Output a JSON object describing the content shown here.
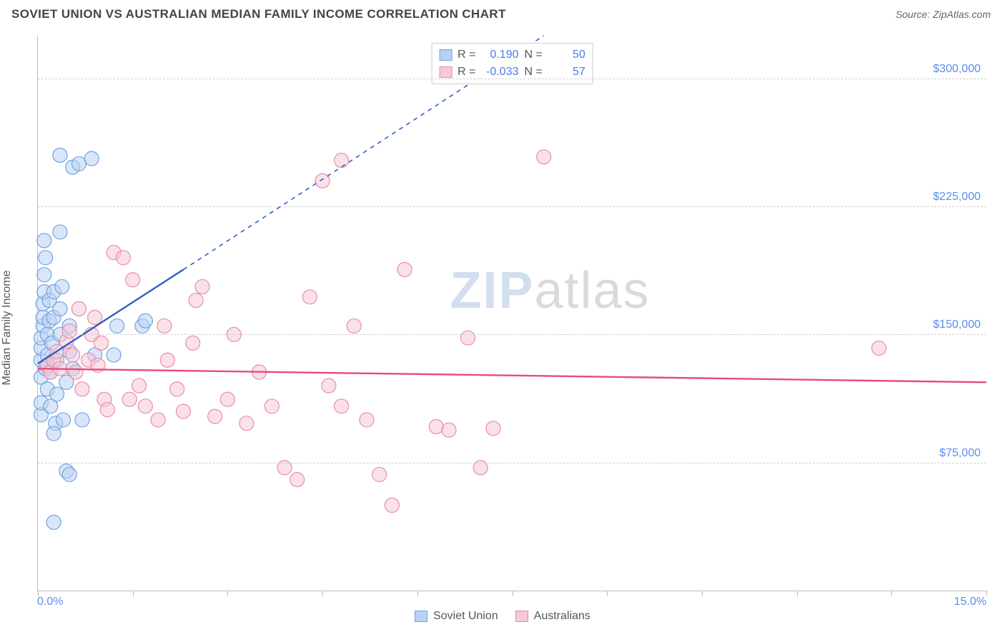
{
  "header": {
    "title": "SOVIET UNION VS AUSTRALIAN MEDIAN FAMILY INCOME CORRELATION CHART",
    "source": "Source: ZipAtlas.com"
  },
  "chart": {
    "type": "scatter",
    "ylabel": "Median Family Income",
    "xlim": [
      0,
      15
    ],
    "ylim": [
      0,
      325000
    ],
    "xtick_positions": [
      0,
      1.5,
      3.0,
      4.5,
      6.0,
      7.5,
      9.0,
      10.5,
      12.0,
      13.5,
      15.0
    ],
    "xaxis_min_label": "0.0%",
    "xaxis_max_label": "15.0%",
    "yticks": [
      {
        "v": 75000,
        "label": "$75,000"
      },
      {
        "v": 150000,
        "label": "$150,000"
      },
      {
        "v": 225000,
        "label": "$225,000"
      },
      {
        "v": 300000,
        "label": "$300,000"
      }
    ],
    "background_color": "#ffffff",
    "grid_color": "#d0d0d0",
    "axis_color": "#bbbbbb",
    "tick_label_color": "#5b8def",
    "marker_radius": 10,
    "marker_opacity": 0.55,
    "series": [
      {
        "name": "Soviet Union",
        "color_fill": "#b9d2f4",
        "color_stroke": "#6fa3e0",
        "swatch_fill": "#b9d2f4",
        "swatch_border": "#6fa3e0",
        "R": "0.190",
        "N": "50",
        "trend": {
          "color": "#2f5fc4",
          "solid": {
            "x1": 0.0,
            "y1": 133000,
            "x2": 2.3,
            "y2": 188000
          },
          "dashed": {
            "x1": 2.3,
            "y1": 188000,
            "x2": 8.0,
            "y2": 325000
          }
        },
        "points": [
          [
            0.05,
            103000
          ],
          [
            0.05,
            110000
          ],
          [
            0.05,
            125000
          ],
          [
            0.05,
            135000
          ],
          [
            0.05,
            142000
          ],
          [
            0.05,
            148000
          ],
          [
            0.08,
            155000
          ],
          [
            0.08,
            160000
          ],
          [
            0.08,
            168000
          ],
          [
            0.1,
            175000
          ],
          [
            0.1,
            185000
          ],
          [
            0.12,
            195000
          ],
          [
            0.12,
            130000
          ],
          [
            0.15,
            118000
          ],
          [
            0.15,
            138000
          ],
          [
            0.15,
            150000
          ],
          [
            0.18,
            158000
          ],
          [
            0.18,
            170000
          ],
          [
            0.2,
            108000
          ],
          [
            0.2,
            128000
          ],
          [
            0.22,
            145000
          ],
          [
            0.25,
            160000
          ],
          [
            0.25,
            175000
          ],
          [
            0.28,
            98000
          ],
          [
            0.3,
            115000
          ],
          [
            0.3,
            135000
          ],
          [
            0.35,
            150000
          ],
          [
            0.35,
            165000
          ],
          [
            0.38,
            178000
          ],
          [
            0.4,
            100000
          ],
          [
            0.45,
            122000
          ],
          [
            0.5,
            140000
          ],
          [
            0.5,
            155000
          ],
          [
            0.55,
            130000
          ],
          [
            0.1,
            205000
          ],
          [
            0.35,
            210000
          ],
          [
            0.55,
            248000
          ],
          [
            0.65,
            250000
          ],
          [
            0.85,
            253000
          ],
          [
            0.35,
            255000
          ],
          [
            0.25,
            92000
          ],
          [
            0.45,
            70000
          ],
          [
            0.5,
            68000
          ],
          [
            0.25,
            40000
          ],
          [
            0.7,
            100000
          ],
          [
            0.9,
            138000
          ],
          [
            1.2,
            138000
          ],
          [
            1.25,
            155000
          ],
          [
            1.65,
            155000
          ],
          [
            1.7,
            158000
          ]
        ]
      },
      {
        "name": "Australians",
        "color_fill": "#f6c9d5",
        "color_stroke": "#e88da8",
        "swatch_fill": "#f6c9d5",
        "swatch_border": "#e88da8",
        "R": "-0.033",
        "N": "57",
        "trend": {
          "color": "#e84a7a",
          "solid": {
            "x1": 0.0,
            "y1": 130000,
            "x2": 15.0,
            "y2": 122000
          },
          "dashed": null
        },
        "points": [
          [
            0.15,
            132000
          ],
          [
            0.2,
            128000
          ],
          [
            0.25,
            135000
          ],
          [
            0.3,
            140000
          ],
          [
            0.35,
            130000
          ],
          [
            0.45,
            146000
          ],
          [
            0.5,
            152000
          ],
          [
            0.55,
            138000
          ],
          [
            0.6,
            128000
          ],
          [
            0.7,
            118000
          ],
          [
            0.8,
            135000
          ],
          [
            0.85,
            150000
          ],
          [
            0.9,
            160000
          ],
          [
            0.95,
            132000
          ],
          [
            1.0,
            145000
          ],
          [
            1.05,
            112000
          ],
          [
            1.1,
            106000
          ],
          [
            1.2,
            198000
          ],
          [
            1.35,
            195000
          ],
          [
            1.5,
            182000
          ],
          [
            1.6,
            120000
          ],
          [
            1.7,
            108000
          ],
          [
            1.9,
            100000
          ],
          [
            2.0,
            155000
          ],
          [
            2.2,
            118000
          ],
          [
            2.3,
            105000
          ],
          [
            2.5,
            170000
          ],
          [
            2.6,
            178000
          ],
          [
            2.8,
            102000
          ],
          [
            3.0,
            112000
          ],
          [
            3.1,
            150000
          ],
          [
            3.3,
            98000
          ],
          [
            3.5,
            128000
          ],
          [
            3.7,
            108000
          ],
          [
            3.9,
            72000
          ],
          [
            4.1,
            65000
          ],
          [
            4.3,
            172000
          ],
          [
            4.6,
            120000
          ],
          [
            4.8,
            108000
          ],
          [
            5.0,
            155000
          ],
          [
            5.2,
            100000
          ],
          [
            5.4,
            68000
          ],
          [
            5.6,
            50000
          ],
          [
            4.5,
            240000
          ],
          [
            4.8,
            252000
          ],
          [
            5.8,
            188000
          ],
          [
            6.3,
            96000
          ],
          [
            6.5,
            94000
          ],
          [
            6.8,
            148000
          ],
          [
            7.0,
            72000
          ],
          [
            7.2,
            95000
          ],
          [
            8.0,
            254000
          ],
          [
            13.3,
            142000
          ],
          [
            2.05,
            135000
          ],
          [
            2.45,
            145000
          ],
          [
            1.45,
            112000
          ],
          [
            0.65,
            165000
          ]
        ]
      }
    ],
    "legend": [
      {
        "label": "Soviet Union",
        "fill": "#b9d2f4",
        "border": "#6fa3e0"
      },
      {
        "label": "Australians",
        "fill": "#f6c9d5",
        "border": "#e88da8"
      }
    ],
    "stats_labels": {
      "r": "R =",
      "n": "N ="
    },
    "watermark": {
      "part1": "ZIP",
      "part2": "atlas"
    }
  }
}
